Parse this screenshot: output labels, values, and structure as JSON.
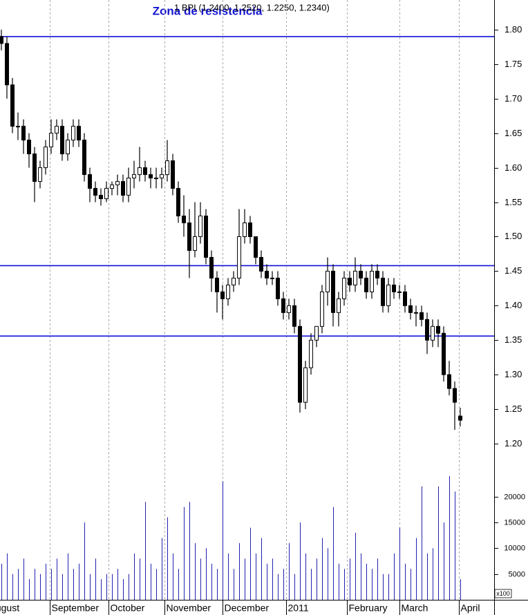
{
  "chart_data": {
    "type": "candlestick",
    "title": "Zona de resistencia",
    "legend_text": "1 BPI (1.2400, 1.2520, 1.2250, 1.2340)",
    "x": [
      0,
      1,
      2,
      3,
      4,
      5,
      6,
      7,
      8,
      9,
      10,
      11,
      12,
      13,
      14,
      15,
      16,
      17,
      18,
      19,
      20,
      21,
      22,
      23,
      24,
      25,
      26,
      27,
      28,
      29,
      30,
      31,
      32,
      33,
      34,
      35,
      36,
      37,
      38,
      39,
      40,
      41,
      42,
      43,
      44,
      45,
      46,
      47,
      48,
      49,
      50,
      51,
      52,
      53,
      54,
      55,
      56,
      57,
      58,
      59,
      60,
      61,
      62,
      63,
      64,
      65,
      66,
      67,
      68,
      69,
      70,
      71,
      72,
      73,
      74,
      75,
      76,
      77,
      78,
      79,
      80,
      81,
      82,
      83
    ],
    "xlim": [
      -0.25,
      89.125
    ],
    "xticks": [
      {
        "value": -2.5,
        "label": "August"
      },
      {
        "value": 8.75,
        "label": "September"
      },
      {
        "value": 19.375,
        "label": "October"
      },
      {
        "value": 29.5,
        "label": "November"
      },
      {
        "value": 40,
        "label": "December"
      },
      {
        "value": 51.5,
        "label": "2011"
      },
      {
        "value": 62.5,
        "label": "February"
      },
      {
        "value": 72,
        "label": "March"
      },
      {
        "value": 82.75,
        "label": "April"
      }
    ],
    "open": [
      1.79,
      1.78,
      1.72,
      1.66,
      1.66,
      1.64,
      1.62,
      1.58,
      1.6,
      1.63,
      1.65,
      1.66,
      1.62,
      1.64,
      1.66,
      1.64,
      1.59,
      1.57,
      1.56,
      1.555,
      1.57,
      1.575,
      1.58,
      1.56,
      1.585,
      1.59,
      1.6,
      1.59,
      1.585,
      1.585,
      1.59,
      1.61,
      1.57,
      1.53,
      1.52,
      1.48,
      1.5,
      1.53,
      1.47,
      1.44,
      1.42,
      1.41,
      1.43,
      1.44,
      1.5,
      1.52,
      1.5,
      1.47,
      1.45,
      1.44,
      1.44,
      1.41,
      1.39,
      1.4,
      1.37,
      1.26,
      1.31,
      1.35,
      1.37,
      1.42,
      1.45,
      1.39,
      1.41,
      1.44,
      1.43,
      1.45,
      1.44,
      1.42,
      1.45,
      1.44,
      1.4,
      1.43,
      1.42,
      1.42,
      1.4,
      1.39,
      1.39,
      1.38,
      1.35,
      1.37,
      1.36,
      1.3,
      1.28,
      1.24
    ],
    "high": [
      1.8,
      1.79,
      1.73,
      1.68,
      1.67,
      1.65,
      1.63,
      1.61,
      1.64,
      1.67,
      1.67,
      1.67,
      1.65,
      1.67,
      1.67,
      1.65,
      1.6,
      1.58,
      1.57,
      1.58,
      1.58,
      1.59,
      1.59,
      1.6,
      1.61,
      1.63,
      1.61,
      1.6,
      1.6,
      1.6,
      1.64,
      1.62,
      1.58,
      1.56,
      1.54,
      1.55,
      1.55,
      1.54,
      1.48,
      1.45,
      1.43,
      1.44,
      1.45,
      1.54,
      1.54,
      1.53,
      1.5,
      1.48,
      1.46,
      1.45,
      1.45,
      1.42,
      1.41,
      1.41,
      1.38,
      1.32,
      1.36,
      1.37,
      1.43,
      1.47,
      1.46,
      1.42,
      1.45,
      1.45,
      1.47,
      1.46,
      1.45,
      1.46,
      1.46,
      1.45,
      1.44,
      1.44,
      1.43,
      1.43,
      1.41,
      1.4,
      1.4,
      1.39,
      1.38,
      1.38,
      1.37,
      1.32,
      1.29,
      1.252
    ],
    "low": [
      1.77,
      1.7,
      1.65,
      1.64,
      1.62,
      1.6,
      1.55,
      1.57,
      1.59,
      1.62,
      1.64,
      1.61,
      1.61,
      1.63,
      1.63,
      1.58,
      1.55,
      1.55,
      1.545,
      1.55,
      1.56,
      1.56,
      1.55,
      1.55,
      1.57,
      1.58,
      1.58,
      1.57,
      1.57,
      1.57,
      1.58,
      1.56,
      1.52,
      1.5,
      1.44,
      1.47,
      1.49,
      1.46,
      1.42,
      1.39,
      1.38,
      1.4,
      1.42,
      1.43,
      1.49,
      1.49,
      1.46,
      1.44,
      1.43,
      1.43,
      1.4,
      1.38,
      1.38,
      1.36,
      1.245,
      1.25,
      1.3,
      1.34,
      1.36,
      1.4,
      1.37,
      1.37,
      1.4,
      1.42,
      1.42,
      1.43,
      1.41,
      1.41,
      1.43,
      1.39,
      1.39,
      1.41,
      1.41,
      1.39,
      1.38,
      1.37,
      1.37,
      1.33,
      1.34,
      1.34,
      1.29,
      1.27,
      1.22,
      1.225
    ],
    "close": [
      1.78,
      1.72,
      1.66,
      1.66,
      1.64,
      1.62,
      1.58,
      1.6,
      1.63,
      1.65,
      1.66,
      1.62,
      1.64,
      1.66,
      1.64,
      1.59,
      1.57,
      1.56,
      1.555,
      1.57,
      1.575,
      1.58,
      1.56,
      1.585,
      1.59,
      1.6,
      1.59,
      1.585,
      1.585,
      1.59,
      1.61,
      1.57,
      1.53,
      1.52,
      1.48,
      1.5,
      1.53,
      1.47,
      1.44,
      1.42,
      1.41,
      1.43,
      1.44,
      1.5,
      1.52,
      1.5,
      1.47,
      1.45,
      1.44,
      1.44,
      1.41,
      1.39,
      1.4,
      1.37,
      1.26,
      1.31,
      1.35,
      1.37,
      1.42,
      1.45,
      1.39,
      1.41,
      1.44,
      1.43,
      1.45,
      1.44,
      1.42,
      1.45,
      1.44,
      1.4,
      1.43,
      1.42,
      1.42,
      1.4,
      1.39,
      1.39,
      1.38,
      1.35,
      1.37,
      1.36,
      1.3,
      1.28,
      1.26,
      1.234
    ],
    "ylim": [
      1.162,
      1.843
    ],
    "yticks": [
      {
        "value": 1.2,
        "label": "1.20"
      },
      1.25,
      {
        "value": 1.3,
        "label": "1.30"
      },
      1.35,
      {
        "value": 1.4,
        "label": "1.40"
      },
      1.45,
      {
        "value": 1.5,
        "label": "1.50"
      },
      1.55,
      {
        "value": 1.6,
        "label": "1.60"
      },
      1.65,
      {
        "value": 1.7,
        "label": "1.70"
      },
      1.75,
      {
        "value": 1.8,
        "label": "1.80"
      }
    ],
    "reference_lines": [
      1.79,
      1.458,
      1.356
    ],
    "reference_color": "#1010d8",
    "up_color": "#ffffff",
    "down_color": "#000000",
    "volume": [
      7000,
      9000,
      5000,
      6000,
      8000,
      4000,
      6000,
      5000,
      7000,
      6000,
      8000,
      5000,
      9000,
      6000,
      7000,
      15000,
      5000,
      8000,
      4000,
      5000,
      5000,
      6000,
      4000,
      5000,
      9000,
      8000,
      19000,
      7000,
      6000,
      12000,
      16000,
      9000,
      6000,
      18000,
      19000,
      11000,
      8000,
      10000,
      7000,
      6000,
      23000,
      9000,
      6000,
      11000,
      8000,
      14000,
      9000,
      12000,
      7000,
      8000,
      5000,
      6000,
      11000,
      5000,
      15000,
      9000,
      6000,
      8000,
      12000,
      10000,
      18000,
      7000,
      6000,
      8000,
      13000,
      9000,
      7000,
      6000,
      8000,
      5000,
      5000,
      9000,
      14000,
      7000,
      6000,
      12000,
      22000,
      9000,
      10000,
      22000,
      15000,
      24000,
      21000,
      4000
    ],
    "volume_color": "#2020b0",
    "volume_ylim": [
      0,
      24400
    ],
    "volume_yticks": [
      5000,
      10000,
      15000,
      20000
    ],
    "volume_unit": "x100"
  }
}
